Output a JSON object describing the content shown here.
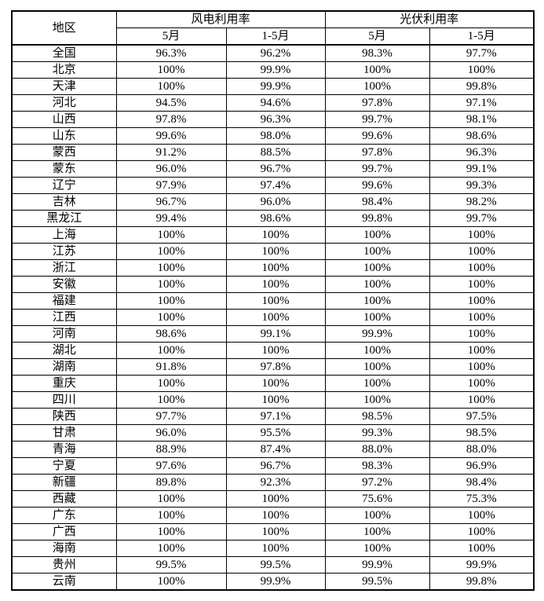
{
  "table": {
    "headers": {
      "region": "地区",
      "wind_group": "风电利用率",
      "solar_group": "光伏利用率",
      "subheaders": [
        "5月",
        "1-5月",
        "5月",
        "1-5月"
      ]
    },
    "rows": [
      {
        "region": "全国",
        "values": [
          "96.3%",
          "96.2%",
          "98.3%",
          "97.7%"
        ]
      },
      {
        "region": "北京",
        "values": [
          "100%",
          "99.9%",
          "100%",
          "100%"
        ]
      },
      {
        "region": "天津",
        "values": [
          "100%",
          "99.9%",
          "100%",
          "99.8%"
        ]
      },
      {
        "region": "河北",
        "values": [
          "94.5%",
          "94.6%",
          "97.8%",
          "97.1%"
        ]
      },
      {
        "region": "山西",
        "values": [
          "97.8%",
          "96.3%",
          "99.7%",
          "98.1%"
        ]
      },
      {
        "region": "山东",
        "values": [
          "99.6%",
          "98.0%",
          "99.6%",
          "98.6%"
        ]
      },
      {
        "region": "蒙西",
        "values": [
          "91.2%",
          "88.5%",
          "97.8%",
          "96.3%"
        ]
      },
      {
        "region": "蒙东",
        "values": [
          "96.0%",
          "96.7%",
          "99.7%",
          "99.1%"
        ]
      },
      {
        "region": "辽宁",
        "values": [
          "97.9%",
          "97.4%",
          "99.6%",
          "99.3%"
        ]
      },
      {
        "region": "吉林",
        "values": [
          "96.7%",
          "96.0%",
          "98.4%",
          "98.2%"
        ]
      },
      {
        "region": "黑龙江",
        "values": [
          "99.4%",
          "98.6%",
          "99.8%",
          "99.7%"
        ]
      },
      {
        "region": "上海",
        "values": [
          "100%",
          "100%",
          "100%",
          "100%"
        ]
      },
      {
        "region": "江苏",
        "values": [
          "100%",
          "100%",
          "100%",
          "100%"
        ]
      },
      {
        "region": "浙江",
        "values": [
          "100%",
          "100%",
          "100%",
          "100%"
        ]
      },
      {
        "region": "安徽",
        "values": [
          "100%",
          "100%",
          "100%",
          "100%"
        ]
      },
      {
        "region": "福建",
        "values": [
          "100%",
          "100%",
          "100%",
          "100%"
        ]
      },
      {
        "region": "江西",
        "values": [
          "100%",
          "100%",
          "100%",
          "100%"
        ]
      },
      {
        "region": "河南",
        "values": [
          "98.6%",
          "99.1%",
          "99.9%",
          "100%"
        ]
      },
      {
        "region": "湖北",
        "values": [
          "100%",
          "100%",
          "100%",
          "100%"
        ]
      },
      {
        "region": "湖南",
        "values": [
          "91.8%",
          "97.8%",
          "100%",
          "100%"
        ]
      },
      {
        "region": "重庆",
        "values": [
          "100%",
          "100%",
          "100%",
          "100%"
        ]
      },
      {
        "region": "四川",
        "values": [
          "100%",
          "100%",
          "100%",
          "100%"
        ]
      },
      {
        "region": "陕西",
        "values": [
          "97.7%",
          "97.1%",
          "98.5%",
          "97.5%"
        ]
      },
      {
        "region": "甘肃",
        "values": [
          "96.0%",
          "95.5%",
          "99.3%",
          "98.5%"
        ]
      },
      {
        "region": "青海",
        "values": [
          "88.9%",
          "87.4%",
          "88.0%",
          "88.0%"
        ]
      },
      {
        "region": "宁夏",
        "values": [
          "97.6%",
          "96.7%",
          "98.3%",
          "96.9%"
        ]
      },
      {
        "region": "新疆",
        "values": [
          "89.8%",
          "92.3%",
          "97.2%",
          "98.4%"
        ]
      },
      {
        "region": "西藏",
        "values": [
          "100%",
          "100%",
          "75.6%",
          "75.3%"
        ]
      },
      {
        "region": "广东",
        "values": [
          "100%",
          "100%",
          "100%",
          "100%"
        ]
      },
      {
        "region": "广西",
        "values": [
          "100%",
          "100%",
          "100%",
          "100%"
        ]
      },
      {
        "region": "海南",
        "values": [
          "100%",
          "100%",
          "100%",
          "100%"
        ]
      },
      {
        "region": "贵州",
        "values": [
          "99.5%",
          "99.5%",
          "99.9%",
          "99.9%"
        ]
      },
      {
        "region": "云南",
        "values": [
          "100%",
          "99.9%",
          "99.5%",
          "99.8%"
        ]
      }
    ]
  },
  "colors": {
    "border": "#000000",
    "text": "#000000",
    "background": "#ffffff"
  }
}
